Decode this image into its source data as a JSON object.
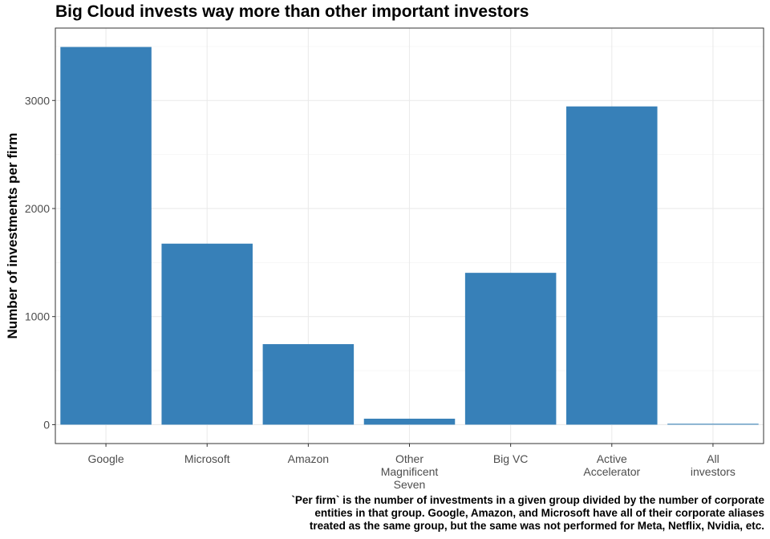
{
  "chart_data": {
    "type": "bar",
    "title": "Big Cloud invests way more than other important investors",
    "xlabel": "",
    "ylabel": "Number of investments per firm",
    "categories": [
      [
        "Google"
      ],
      [
        "Microsoft"
      ],
      [
        "Amazon"
      ],
      [
        "Other",
        "Magnificent",
        "Seven"
      ],
      [
        "Big VC"
      ],
      [
        "Active",
        "Accelerator"
      ],
      [
        "All",
        "investors"
      ]
    ],
    "values": [
      3495,
      1675,
      745,
      55,
      1405,
      2945,
      8
    ],
    "ylim": [
      -175,
      3670
    ],
    "yticks": [
      0,
      1000,
      2000,
      3000
    ],
    "grid": true,
    "legend": "none",
    "bar_color": "#3780B8",
    "caption": [
      "`Per firm` is the number of investments in a given group divided by the number of corporate",
      "entities in that group. Google, Amazon, and Microsoft have all of their corporate aliases",
      "treated as the same group, but the same was not performed for Meta, Netflix, Nvidia, etc."
    ]
  }
}
